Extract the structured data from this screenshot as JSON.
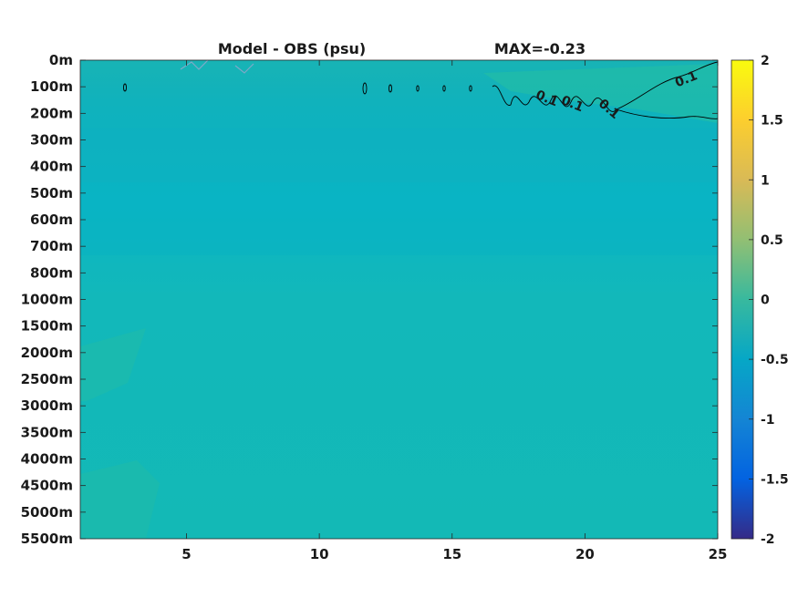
{
  "chart_data": {
    "type": "heatmap",
    "title": "Model - OBS (psu)",
    "max_label": "MAX=-0.23",
    "colormap": "parula",
    "colors": {
      "background_field": "#13b8b7",
      "upper_band": "#11b4bd",
      "warm_patch": "#2fc09d",
      "contour": "#000000"
    },
    "x": {
      "range": [
        1,
        25
      ],
      "ticks": [
        5,
        10,
        15,
        20,
        25
      ],
      "tick_labels": [
        "5",
        "10",
        "15",
        "20",
        "25"
      ]
    },
    "y": {
      "tick_labels": [
        "0m",
        "100m",
        "200m",
        "300m",
        "400m",
        "500m",
        "600m",
        "700m",
        "800m",
        "1000m",
        "1500m",
        "2000m",
        "2500m",
        "3000m",
        "3500m",
        "4000m",
        "4500m",
        "5000m",
        "5500m"
      ],
      "direction": "top-to-bottom"
    },
    "colorbar": {
      "range": [
        -2,
        2
      ],
      "ticks": [
        2,
        1.5,
        1,
        0.5,
        0,
        -0.5,
        -1,
        -1.5,
        -2
      ],
      "tick_labels": [
        "2",
        "1.5",
        "1",
        "0.5",
        "0",
        "-0.5",
        "-1",
        "-1.5",
        "-2"
      ]
    },
    "contour_level": 0.1,
    "contour_labels": [
      "0.1",
      "0.1",
      "0.1",
      "0.1",
      "0.1"
    ]
  }
}
